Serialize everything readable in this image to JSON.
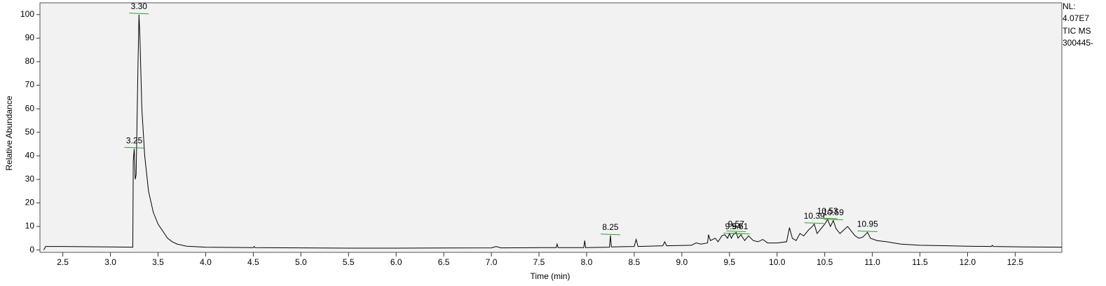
{
  "chart_data": {
    "type": "line",
    "ylabel": "Relative Abundance",
    "xlabel": "Time (min)",
    "info": [
      "NL:",
      "4.07E7",
      "TIC  MS",
      "300445-"
    ],
    "color": "#000000",
    "annotation_color": "#2ca02c",
    "xlim": [
      2.26,
      12.99
    ],
    "ylim": [
      -1,
      105
    ],
    "xticks": [
      {
        "value": 2.5,
        "label": "2.5"
      },
      {
        "value": 3,
        "label": "3.0"
      },
      {
        "value": 3.5,
        "label": "3.5"
      },
      {
        "value": 4,
        "label": "4.0"
      },
      {
        "value": 4.5,
        "label": "4.5"
      },
      {
        "value": 5,
        "label": "5.0"
      },
      {
        "value": 5.5,
        "label": "5.5"
      },
      {
        "value": 6,
        "label": "6.0"
      },
      {
        "value": 6.5,
        "label": "6.5"
      },
      {
        "value": 7,
        "label": "7.0"
      },
      {
        "value": 7.5,
        "label": "7.5"
      },
      {
        "value": 8,
        "label": "8.0"
      },
      {
        "value": 8.5,
        "label": "8.5"
      },
      {
        "value": 9,
        "label": "9.0"
      },
      {
        "value": 9.5,
        "label": "9.5"
      },
      {
        "value": 10,
        "label": "10.0"
      },
      {
        "value": 10.5,
        "label": "10.5"
      },
      {
        "value": 11,
        "label": "11.0"
      },
      {
        "value": 11.5,
        "label": "11.5"
      },
      {
        "value": 12,
        "label": "12.0"
      },
      {
        "value": 12.5,
        "label": "12.5"
      }
    ],
    "yticks": [
      0,
      10,
      20,
      30,
      40,
      50,
      60,
      70,
      80,
      90,
      100
    ],
    "x": [
      2.3,
      2.32,
      2.5,
      3.0,
      3.22,
      3.235,
      3.24,
      3.25,
      3.26,
      3.27,
      3.29,
      3.3,
      3.31,
      3.33,
      3.36,
      3.4,
      3.45,
      3.5,
      3.55,
      3.6,
      3.65,
      3.7,
      3.8,
      4.0,
      4.5,
      4.51,
      4.52,
      5.0,
      5.5,
      6.0,
      7.0,
      7.05,
      7.1,
      7.5,
      7.68,
      7.69,
      7.7,
      7.97,
      7.98,
      7.99,
      8.24,
      8.25,
      8.26,
      8.5,
      8.52,
      8.54,
      8.8,
      8.82,
      8.84,
      9.1,
      9.15,
      9.2,
      9.27,
      9.28,
      9.3,
      9.35,
      9.38,
      9.42,
      9.45,
      9.48,
      9.5,
      9.52,
      9.54,
      9.57,
      9.59,
      9.62,
      9.66,
      9.7,
      9.75,
      9.8,
      9.85,
      9.9,
      10.0,
      10.1,
      10.13,
      10.16,
      10.2,
      10.24,
      10.28,
      10.33,
      10.37,
      10.39,
      10.42,
      10.46,
      10.5,
      10.53,
      10.56,
      10.59,
      10.62,
      10.66,
      10.7,
      10.74,
      10.78,
      10.82,
      10.86,
      10.9,
      10.95,
      10.98,
      11.05,
      11.15,
      11.3,
      11.5,
      11.8,
      12.0,
      12.25,
      12.26,
      12.27,
      12.6,
      12.99
    ],
    "values": [
      0,
      1.5,
      1.5,
      1.3,
      1.2,
      1.2,
      38,
      43,
      30,
      32,
      80,
      100,
      90,
      60,
      40,
      25,
      16,
      11,
      8,
      5,
      3.5,
      2.5,
      1.6,
      1.2,
      1.0,
      1.5,
      1.0,
      0.9,
      0.8,
      0.8,
      0.9,
      1.5,
      0.9,
      1.0,
      1.0,
      2.5,
      1.0,
      1.0,
      4.0,
      1.0,
      1.2,
      6.2,
      1.3,
      1.5,
      4.5,
      1.5,
      1.8,
      3.5,
      1.8,
      2.0,
      3.0,
      2.5,
      3,
      6.5,
      4,
      5,
      3.5,
      6,
      6.5,
      5,
      7,
      5,
      6.5,
      7.5,
      5,
      6.5,
      4,
      6,
      4,
      3.5,
      4.5,
      3,
      3,
      3.5,
      9.5,
      5,
      4,
      7,
      6,
      8.5,
      10,
      11,
      7,
      9,
      11,
      13,
      10,
      12.5,
      9,
      7,
      8.5,
      10,
      8,
      6,
      5,
      5.5,
      7.5,
      5,
      4,
      3.5,
      2.5,
      2,
      1.8,
      1.6,
      1.5,
      2.0,
      1.5,
      1.3,
      1.2
    ],
    "annotations": [
      {
        "x": 3.3,
        "y": 100,
        "label": "3.30"
      },
      {
        "x": 3.25,
        "y": 43,
        "label": "3.25"
      },
      {
        "x": 8.25,
        "y": 6.2,
        "label": "8.25"
      },
      {
        "x": 9.54,
        "y": 6.5,
        "label": "9.54"
      },
      {
        "x": 9.57,
        "y": 7.5,
        "label": "9.57"
      },
      {
        "x": 9.61,
        "y": 6.5,
        "label": "9.61"
      },
      {
        "x": 10.39,
        "y": 11,
        "label": "10.39"
      },
      {
        "x": 10.53,
        "y": 13,
        "label": "10.53"
      },
      {
        "x": 10.59,
        "y": 12.5,
        "label": "10.59"
      },
      {
        "x": 10.95,
        "y": 7.5,
        "label": "10.95"
      }
    ]
  }
}
